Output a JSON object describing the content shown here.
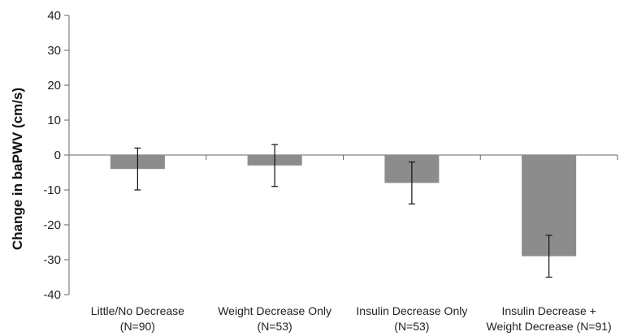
{
  "chart_data": {
    "type": "bar",
    "title": "",
    "xlabel": "",
    "ylabel": "Change in baPWV (cm/s)",
    "ylim": [
      -40,
      40
    ],
    "yticks": [
      40,
      30,
      20,
      10,
      0,
      -10,
      -20,
      -30,
      -40
    ],
    "grid": false,
    "legend": "none",
    "bar_color": "#8c8c8c",
    "categories": [
      [
        "Little/No Decrease",
        "(N=90)"
      ],
      [
        "Weight Decrease Only",
        "(N=53)"
      ],
      [
        "Insulin Decrease Only",
        "(N=53)"
      ],
      [
        "Insulin Decrease +",
        "Weight Decrease (N=91)"
      ]
    ],
    "values": [
      -4,
      -3,
      -8,
      -29
    ],
    "error_low": [
      -10,
      -9,
      -14,
      -35
    ],
    "error_high": [
      2,
      3,
      -2,
      -23
    ]
  }
}
